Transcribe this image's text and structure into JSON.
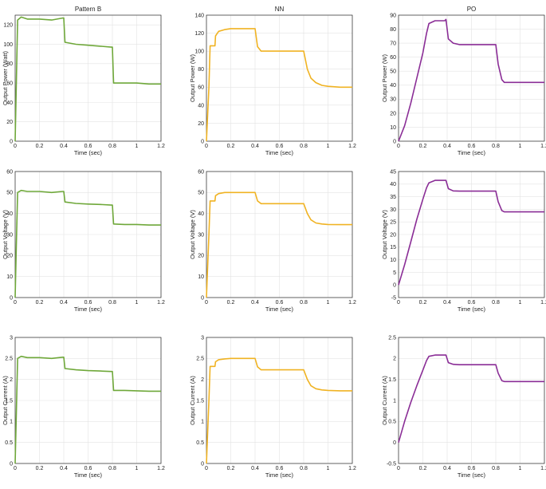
{
  "colors": {
    "pattern_b": "#6fa83a",
    "nn": "#f0b323",
    "po": "#8a2d96"
  },
  "chart_data": [
    {
      "type": "line",
      "title": "Pattern B",
      "xlabel": "Time (sec)",
      "ylabel": "Output Power (Watt)",
      "xlim": [
        0,
        1.2
      ],
      "ylim": [
        0,
        130
      ],
      "xticks": [
        "0",
        "0.2",
        "0.4",
        "0.6",
        "0.8",
        "1",
        "1.2"
      ],
      "yticks": [
        "0",
        "20",
        "40",
        "60",
        "80",
        "100",
        "120"
      ],
      "series": [
        {
          "color": "#6fa83a",
          "x": [
            0,
            0.01,
            0.02,
            0.05,
            0.1,
            0.2,
            0.3,
            0.39,
            0.4,
            0.41,
            0.5,
            0.6,
            0.7,
            0.79,
            0.8,
            0.81,
            0.9,
            1.0,
            1.1,
            1.2
          ],
          "y": [
            0,
            60,
            125,
            128,
            126,
            126,
            125,
            127,
            127,
            102,
            100,
            99,
            98,
            97,
            97,
            60,
            60,
            60,
            59,
            59
          ]
        }
      ]
    },
    {
      "type": "line",
      "title": "NN",
      "xlabel": "Time (sec)",
      "ylabel": "Output Power (W)",
      "xlim": [
        0,
        1.2
      ],
      "ylim": [
        0,
        140
      ],
      "xticks": [
        "0",
        "0.2",
        "0.4",
        "0.6",
        "0.8",
        "1",
        "1.2"
      ],
      "yticks": [
        "0",
        "20",
        "40",
        "60",
        "80",
        "100",
        "120",
        "140"
      ],
      "series": [
        {
          "color": "#f0b323",
          "x": [
            0,
            0.02,
            0.03,
            0.07,
            0.075,
            0.1,
            0.15,
            0.2,
            0.3,
            0.4,
            0.42,
            0.45,
            0.5,
            0.6,
            0.7,
            0.8,
            0.83,
            0.86,
            0.9,
            0.95,
            1.0,
            1.1,
            1.2
          ],
          "y": [
            0,
            60,
            106,
            106,
            117,
            122,
            124,
            125,
            125,
            125,
            105,
            100,
            100,
            100,
            100,
            100,
            80,
            70,
            65,
            62,
            61,
            60,
            60
          ]
        }
      ]
    },
    {
      "type": "line",
      "title": "PO",
      "xlabel": "Time (sec)",
      "ylabel": "Output Power (W)",
      "xlim": [
        0,
        1.2
      ],
      "ylim": [
        0,
        90
      ],
      "xticks": [
        "0",
        "0.2",
        "0.4",
        "0.6",
        "0.8",
        "1",
        "1.2"
      ],
      "yticks": [
        "0",
        "10",
        "20",
        "30",
        "40",
        "50",
        "60",
        "70",
        "80",
        "90"
      ],
      "series": [
        {
          "color": "#8a2d96",
          "x": [
            0,
            0.05,
            0.1,
            0.15,
            0.2,
            0.23,
            0.25,
            0.3,
            0.38,
            0.39,
            0.41,
            0.45,
            0.5,
            0.6,
            0.7,
            0.8,
            0.82,
            0.85,
            0.87,
            0.9,
            1.0,
            1.1,
            1.2
          ],
          "y": [
            0,
            11,
            27,
            45,
            63,
            77,
            84,
            86,
            86,
            87,
            73,
            70,
            69,
            69,
            69,
            69,
            55,
            44,
            42,
            42,
            42,
            42,
            42
          ]
        }
      ]
    },
    {
      "type": "line",
      "title": "",
      "xlabel": "Time (sec)",
      "ylabel": "Output Voltage (V)",
      "xlim": [
        0,
        1.2
      ],
      "ylim": [
        0,
        60
      ],
      "xticks": [
        "0",
        "0.2",
        "0.4",
        "0.6",
        "0.8",
        "1",
        "1.2"
      ],
      "yticks": [
        "0",
        "10",
        "20",
        "30",
        "40",
        "50",
        "60"
      ],
      "series": [
        {
          "color": "#6fa83a",
          "x": [
            0,
            0.01,
            0.02,
            0.05,
            0.1,
            0.2,
            0.3,
            0.39,
            0.4,
            0.41,
            0.5,
            0.6,
            0.7,
            0.79,
            0.8,
            0.81,
            0.9,
            1.0,
            1.1,
            1.2
          ],
          "y": [
            0,
            25,
            50,
            51,
            50.5,
            50.5,
            50,
            50.5,
            50.5,
            45.5,
            44.8,
            44.5,
            44.3,
            44,
            44,
            35,
            34.8,
            34.8,
            34.5,
            34.5
          ]
        }
      ]
    },
    {
      "type": "line",
      "title": "",
      "xlabel": "Time (sec)",
      "ylabel": "Output Voltage (V)",
      "xlim": [
        0,
        1.2
      ],
      "ylim": [
        0,
        60
      ],
      "xticks": [
        "0",
        "0.2",
        "0.4",
        "0.6",
        "0.8",
        "1",
        "1.2"
      ],
      "yticks": [
        "0",
        "10",
        "20",
        "30",
        "40",
        "50",
        "60"
      ],
      "series": [
        {
          "color": "#f0b323",
          "x": [
            0,
            0.02,
            0.03,
            0.07,
            0.075,
            0.1,
            0.15,
            0.2,
            0.3,
            0.4,
            0.42,
            0.45,
            0.5,
            0.6,
            0.7,
            0.8,
            0.83,
            0.86,
            0.9,
            0.95,
            1.0,
            1.1,
            1.2
          ],
          "y": [
            0,
            30,
            46,
            46,
            48.5,
            49.5,
            50,
            50,
            50,
            50,
            46,
            44.7,
            44.7,
            44.7,
            44.7,
            44.7,
            40,
            37,
            35.5,
            35,
            34.8,
            34.7,
            34.7
          ]
        }
      ]
    },
    {
      "type": "line",
      "title": "",
      "xlabel": "Time (sec)",
      "ylabel": "Output Voltage (V)",
      "xlim": [
        0,
        1.2
      ],
      "ylim": [
        -5,
        45
      ],
      "xticks": [
        "0",
        "0.2",
        "0.4",
        "0.6",
        "0.8",
        "1",
        "1.2"
      ],
      "yticks": [
        "-5",
        "0",
        "5",
        "10",
        "15",
        "20",
        "25",
        "30",
        "35",
        "40",
        "45"
      ],
      "series": [
        {
          "color": "#8a2d96",
          "x": [
            0,
            0.05,
            0.1,
            0.15,
            0.2,
            0.23,
            0.25,
            0.3,
            0.38,
            0.39,
            0.41,
            0.45,
            0.5,
            0.6,
            0.7,
            0.8,
            0.82,
            0.85,
            0.87,
            0.9,
            1.0,
            1.1,
            1.2
          ],
          "y": [
            0,
            8,
            17,
            26,
            34,
            38.5,
            40.5,
            41.5,
            41.5,
            41.5,
            38.2,
            37.3,
            37.2,
            37.2,
            37.2,
            37.2,
            33,
            29.5,
            29,
            29,
            29,
            29,
            29
          ]
        }
      ]
    },
    {
      "type": "line",
      "title": "",
      "xlabel": "Time (sec)",
      "ylabel": "Output Current (A)",
      "xlim": [
        0,
        1.2
      ],
      "ylim": [
        0,
        3
      ],
      "xticks": [
        "0",
        "0.2",
        "0.4",
        "0.6",
        "0.8",
        "1",
        "1.2"
      ],
      "yticks": [
        "0",
        "0.5",
        "1",
        "1.5",
        "2",
        "2.5",
        "3"
      ],
      "series": [
        {
          "color": "#6fa83a",
          "x": [
            0,
            0.01,
            0.02,
            0.05,
            0.1,
            0.2,
            0.3,
            0.39,
            0.4,
            0.41,
            0.5,
            0.6,
            0.7,
            0.79,
            0.8,
            0.81,
            0.9,
            1.0,
            1.1,
            1.2
          ],
          "y": [
            0,
            1.2,
            2.5,
            2.55,
            2.52,
            2.52,
            2.5,
            2.53,
            2.53,
            2.26,
            2.23,
            2.21,
            2.2,
            2.19,
            2.19,
            1.74,
            1.74,
            1.73,
            1.72,
            1.72
          ]
        }
      ]
    },
    {
      "type": "line",
      "title": "",
      "xlabel": "Time (sec)",
      "ylabel": "Output Current (A)",
      "xlim": [
        0,
        1.2
      ],
      "ylim": [
        0,
        3
      ],
      "xticks": [
        "0",
        "0.2",
        "0.4",
        "0.6",
        "0.8",
        "1",
        "1.2"
      ],
      "yticks": [
        "0",
        "0.5",
        "1",
        "1.5",
        "2",
        "2.5",
        "3"
      ],
      "series": [
        {
          "color": "#f0b323",
          "x": [
            0,
            0.02,
            0.03,
            0.07,
            0.075,
            0.1,
            0.15,
            0.2,
            0.3,
            0.4,
            0.42,
            0.45,
            0.5,
            0.6,
            0.7,
            0.8,
            0.83,
            0.86,
            0.9,
            0.95,
            1.0,
            1.1,
            1.2
          ],
          "y": [
            0,
            1.5,
            2.31,
            2.31,
            2.42,
            2.47,
            2.49,
            2.5,
            2.5,
            2.5,
            2.3,
            2.23,
            2.23,
            2.23,
            2.23,
            2.23,
            2.0,
            1.85,
            1.78,
            1.75,
            1.74,
            1.73,
            1.73
          ]
        }
      ]
    },
    {
      "type": "line",
      "title": "",
      "xlabel": "Time (sec)",
      "ylabel": "Output Current (A)",
      "xlim": [
        0,
        1.2
      ],
      "ylim": [
        -0.5,
        2.5
      ],
      "xticks": [
        "0",
        "0.2",
        "0.4",
        "0.6",
        "0.8",
        "1",
        "1.2"
      ],
      "yticks": [
        "-0.5",
        "0",
        "0.5",
        "1",
        "1.5",
        "2",
        "2.5"
      ],
      "series": [
        {
          "color": "#8a2d96",
          "x": [
            0,
            0.05,
            0.1,
            0.15,
            0.2,
            0.23,
            0.25,
            0.3,
            0.38,
            0.39,
            0.41,
            0.45,
            0.5,
            0.6,
            0.7,
            0.8,
            0.82,
            0.85,
            0.87,
            0.9,
            1.0,
            1.1,
            1.2
          ],
          "y": [
            0,
            0.5,
            0.95,
            1.35,
            1.72,
            1.95,
            2.05,
            2.08,
            2.08,
            2.08,
            1.9,
            1.86,
            1.85,
            1.85,
            1.85,
            1.85,
            1.65,
            1.47,
            1.45,
            1.45,
            1.45,
            1.45,
            1.45
          ]
        }
      ]
    }
  ]
}
